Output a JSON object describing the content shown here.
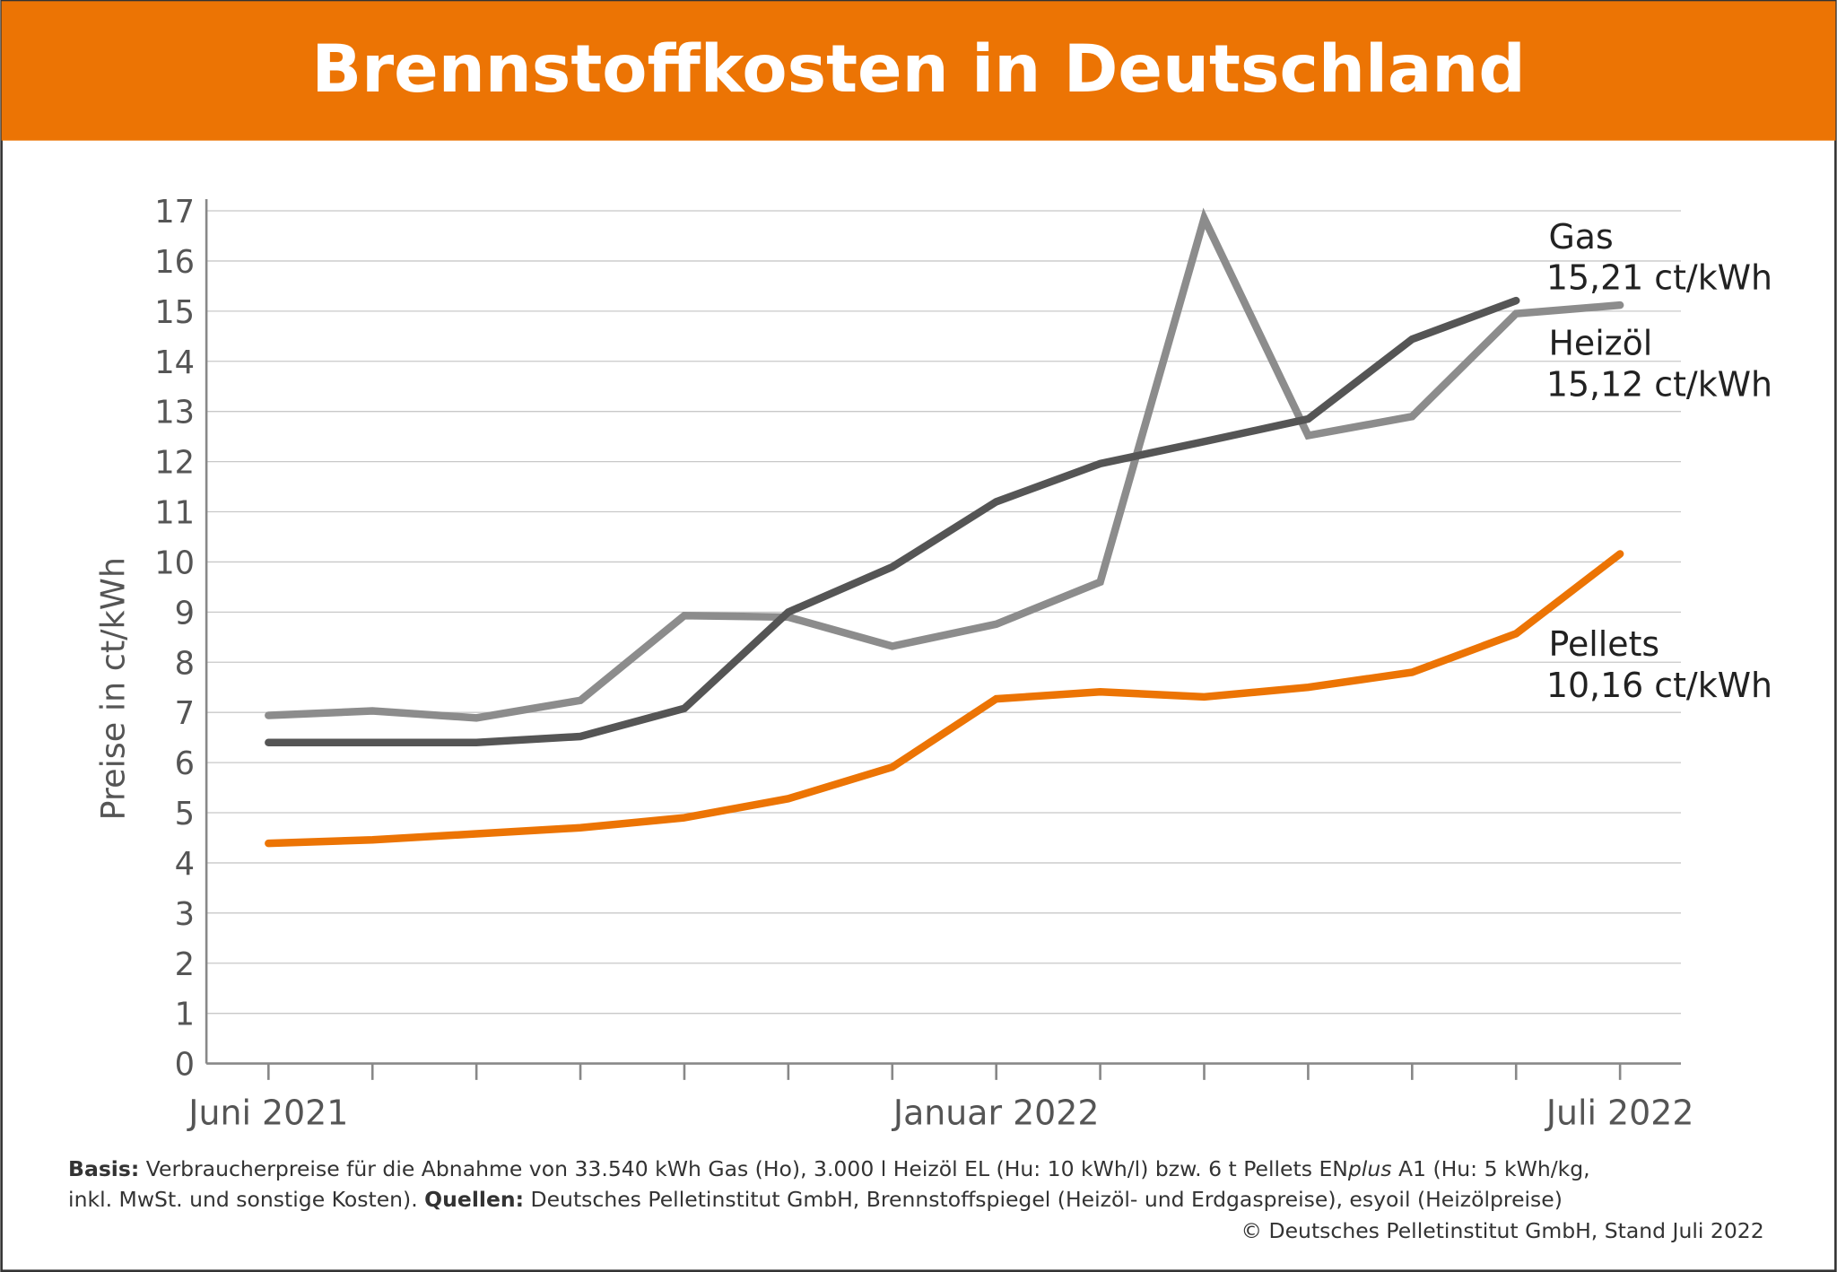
{
  "chart_data": {
    "type": "line",
    "title": "Brennstoffkosten in Deutschland",
    "y_label": "Preise in ct/kWh",
    "categories": [
      "Juni 2021",
      null,
      null,
      null,
      null,
      null,
      null,
      "Januar 2022",
      null,
      null,
      null,
      null,
      null,
      "Juli 2022"
    ],
    "ylim": [
      0,
      17
    ],
    "yticks": [
      0,
      1,
      2,
      3,
      4,
      5,
      6,
      7,
      8,
      9,
      10,
      11,
      12,
      13,
      14,
      15,
      16,
      17
    ],
    "grid": true,
    "series": [
      {
        "name": "Heizöl",
        "color": "#8c8c8c",
        "values": [
          6.94,
          7.03,
          6.89,
          7.24,
          8.93,
          8.9,
          8.32,
          8.76,
          9.6,
          16.85,
          12.52,
          12.9,
          14.95,
          15.12
        ],
        "value_labels": [
          null,
          null,
          null,
          null,
          null,
          null,
          null,
          null,
          null,
          null,
          null,
          null,
          null,
          "15,12 ct/kWh"
        ]
      },
      {
        "name": "Gas",
        "color": "#555555",
        "values": [
          6.4,
          6.4,
          6.4,
          6.52,
          7.08,
          9.0,
          9.9,
          11.2,
          11.96,
          12.4,
          12.85,
          14.44,
          15.21,
          null
        ],
        "value_labels": [
          null,
          null,
          null,
          null,
          null,
          null,
          null,
          null,
          null,
          null,
          null,
          null,
          "15,21 ct/kWh",
          null
        ]
      },
      {
        "name": "Pellets",
        "color": "#ec7404",
        "values": [
          4.39,
          4.46,
          4.58,
          4.7,
          4.9,
          5.28,
          5.91,
          7.27,
          7.41,
          7.31,
          7.5,
          7.8,
          8.57,
          10.16
        ],
        "value_labels": [
          null,
          null,
          null,
          null,
          null,
          null,
          null,
          null,
          null,
          null,
          null,
          null,
          null,
          "10,16 ct/kWh"
        ]
      }
    ],
    "footer": {
      "basis_label": "Basis:",
      "basis_text_1": [
        "Verbraucherpreise für die Abnahme von 33.540 kWh Gas (Ho), 3.000 l Heizöl EL (Hu: 10 kWh/l) bzw. 6 t Pellets EN",
        "plus",
        " A1 (Hu: 5 kWh/kg,"
      ],
      "basis_text_2": "inkl. MwSt. und sonstige Kosten).",
      "quellen_label": "Quellen:",
      "quellen_text": "Deutsches Pelletinstitut GmbH, Brennstoffspiegel (Heizöl- und Erdgaspreise), esyoil (Heizölpreise)",
      "copyright": "© Deutsches Pelletinstitut GmbH, Stand Juli 2022"
    }
  }
}
